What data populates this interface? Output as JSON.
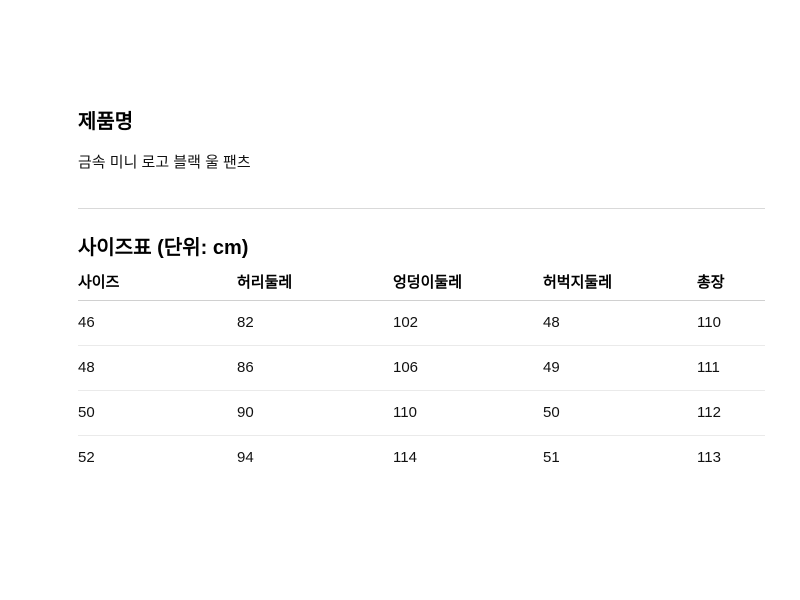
{
  "product": {
    "label": "제품명",
    "name": "금속 미니 로고 블랙 울 팬츠"
  },
  "size_section": {
    "title": "사이즈표 (단위: cm)"
  },
  "size_table": {
    "columns": [
      "사이즈",
      "허리둘레",
      "엉덩이둘레",
      "허벅지둘레",
      "총장"
    ],
    "rows": [
      [
        "46",
        "82",
        "102",
        "48",
        "110"
      ],
      [
        "48",
        "86",
        "106",
        "49",
        "111"
      ],
      [
        "50",
        "90",
        "110",
        "50",
        "112"
      ],
      [
        "52",
        "94",
        "114",
        "51",
        "113"
      ]
    ]
  },
  "colors": {
    "background": "#ffffff",
    "text": "#000000",
    "divider": "#d9d9d9",
    "header_border": "#d0d0d0",
    "row_border": "#eaeaea"
  }
}
